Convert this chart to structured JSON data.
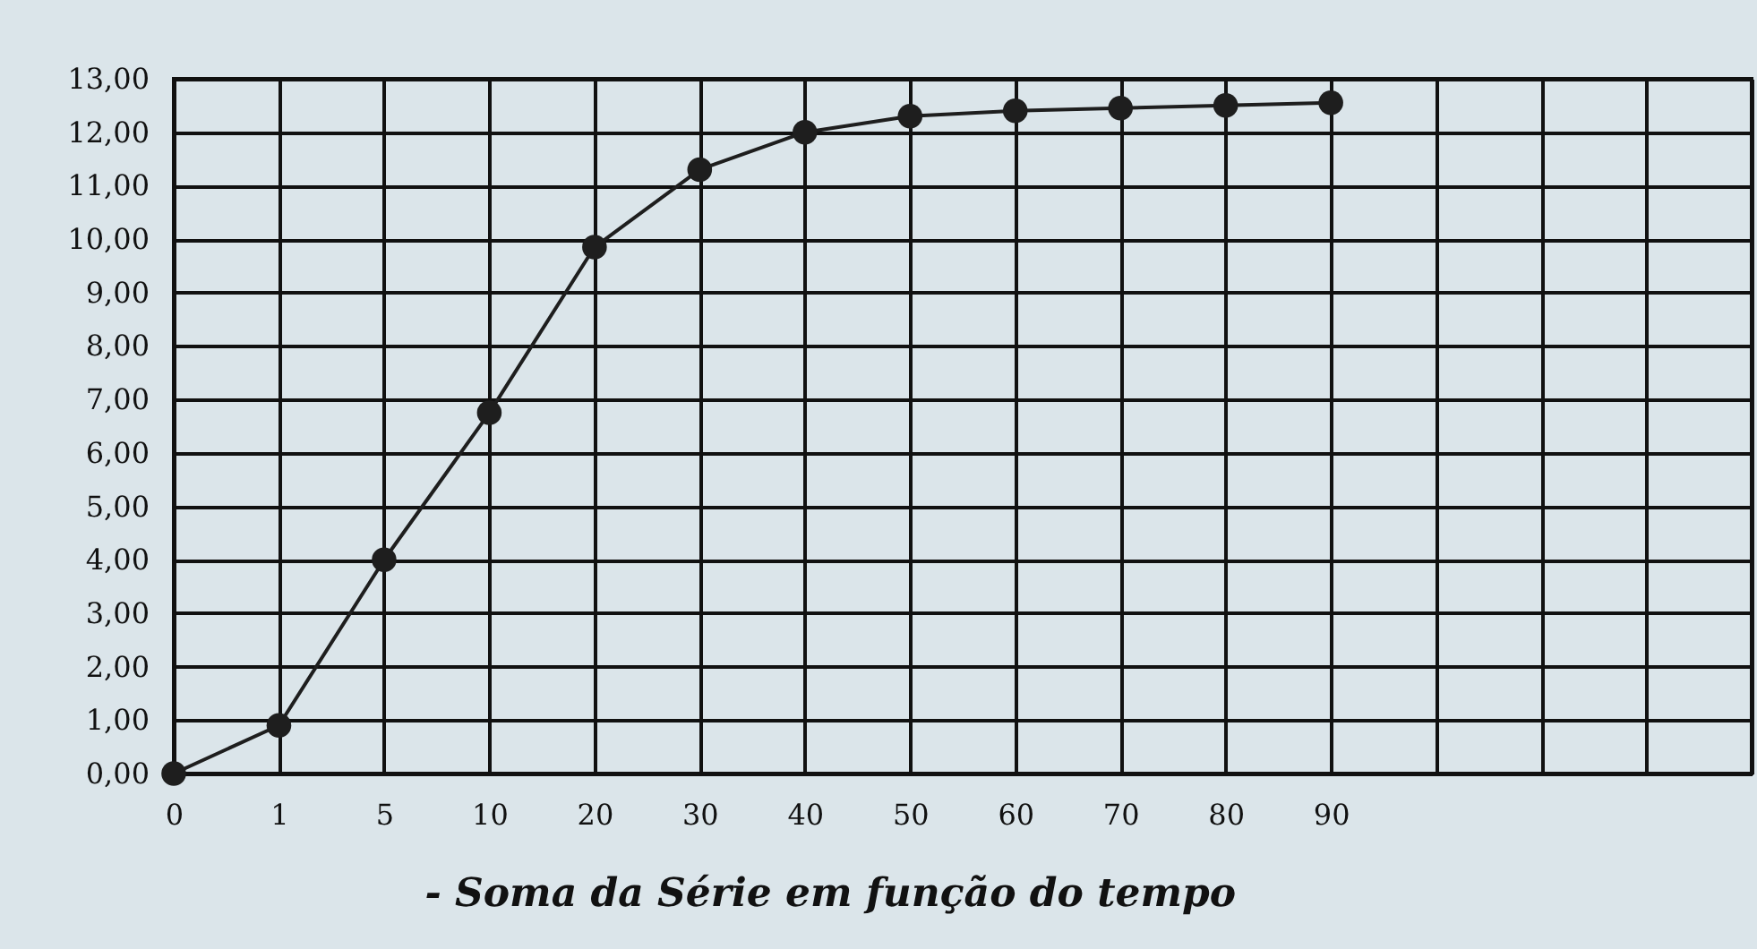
{
  "chart_data": {
    "type": "line",
    "title": "- Soma da Série em função do tempo",
    "categories": [
      "0",
      "1",
      "5",
      "10",
      "20",
      "30",
      "40",
      "50",
      "60",
      "70",
      "80",
      "90",
      null,
      null,
      null,
      null
    ],
    "series": [
      {
        "color": "#1e1e1e",
        "values": [
          0,
          0.9,
          4,
          6.75,
          9.85,
          11.3,
          12,
          12.3,
          12.4,
          12.45,
          12.5,
          12.55,
          null,
          null,
          null,
          null
        ]
      }
    ],
    "ylim": [
      0,
      13
    ],
    "yticks": [
      {
        "value": 0,
        "label": "0,00"
      },
      {
        "value": 1,
        "label": "1,00"
      },
      {
        "value": 2,
        "label": "2,00"
      },
      {
        "value": 3,
        "label": "3,00"
      },
      {
        "value": 4,
        "label": "4,00"
      },
      {
        "value": 5,
        "label": "5,00"
      },
      {
        "value": 6,
        "label": "6,00"
      },
      {
        "value": 7,
        "label": "7,00"
      },
      {
        "value": 8,
        "label": "8,00"
      },
      {
        "value": 9,
        "label": "9,00"
      },
      {
        "value": 10,
        "label": "10,00"
      },
      {
        "value": 11,
        "label": "11,00"
      },
      {
        "value": 12,
        "label": "12,00"
      },
      {
        "value": 13,
        "label": "13,00"
      }
    ],
    "grid": true,
    "marker": "circle",
    "line_style": "solid"
  }
}
